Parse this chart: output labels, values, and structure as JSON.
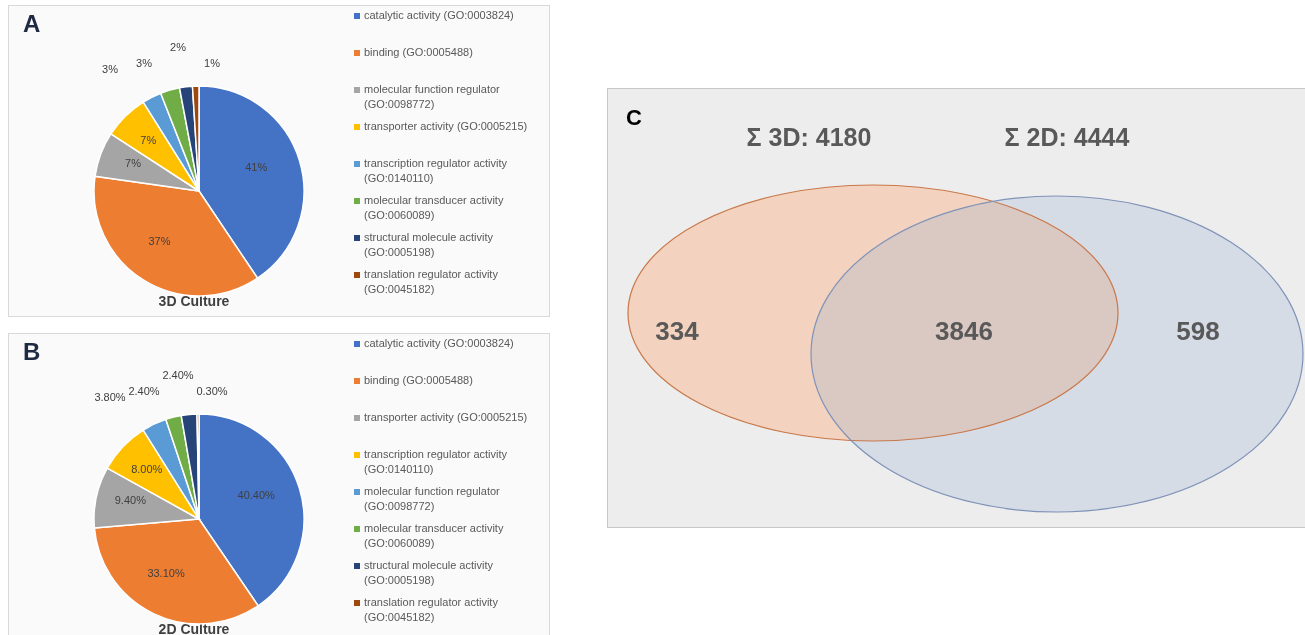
{
  "chart_data": [
    {
      "type": "pie",
      "title": "3D Culture",
      "annotations": [
        "A"
      ],
      "legend": "right",
      "categories": [
        "catalytic activity (GO:0003824)",
        "binding (GO:0005488)",
        "molecular function regulator (GO:0098772)",
        "transporter activity (GO:0005215)",
        "transcription regulator activity (GO:0140110)",
        "molecular transducer activity (GO:0060089)",
        "structural molecule activity (GO:0005198)",
        "translation regulator activity (GO:0045182)"
      ],
      "values": [
        41,
        37,
        7,
        7,
        3,
        3,
        2,
        1
      ],
      "value_labels": [
        "41%",
        "37%",
        "7%",
        "7%",
        "3%",
        "3%",
        "2%",
        "1%"
      ],
      "colors": [
        "#4472c4",
        "#ed7d31",
        "#a5a5a5",
        "#ffc000",
        "#5b9bd5",
        "#70ad47",
        "#264478",
        "#9e480e"
      ]
    },
    {
      "type": "pie",
      "title": "2D Culture",
      "annotations": [
        "B"
      ],
      "legend": "right",
      "categories": [
        "catalytic activity (GO:0003824)",
        "binding (GO:0005488)",
        "transporter activity (GO:0005215)",
        "transcription regulator activity (GO:0140110)",
        "molecular function regulator (GO:0098772)",
        "molecular transducer activity (GO:0060089)",
        "structural molecule activity (GO:0005198)",
        "translation regulator activity (GO:0045182)"
      ],
      "values": [
        40.4,
        33.1,
        9.4,
        8.0,
        3.8,
        2.4,
        2.4,
        0.3
      ],
      "value_labels": [
        "40.40%",
        "33.10%",
        "9.40%",
        "8.00%",
        "3.80%",
        "2.40%",
        "2.40%",
        "0.30%"
      ],
      "colors": [
        "#4472c4",
        "#ed7d31",
        "#a5a5a5",
        "#ffc000",
        "#5b9bd5",
        "#70ad47",
        "#264478",
        "#9e480e"
      ]
    },
    {
      "type": "other",
      "annotations": [
        "C",
        "Σ 3D: 4180",
        "Σ 2D: 4444"
      ],
      "values": [
        334,
        3846,
        598
      ],
      "data_labels": true,
      "colors": [
        "#f3d3bf",
        "#dac8c3",
        "#d6dce5"
      ]
    }
  ]
}
